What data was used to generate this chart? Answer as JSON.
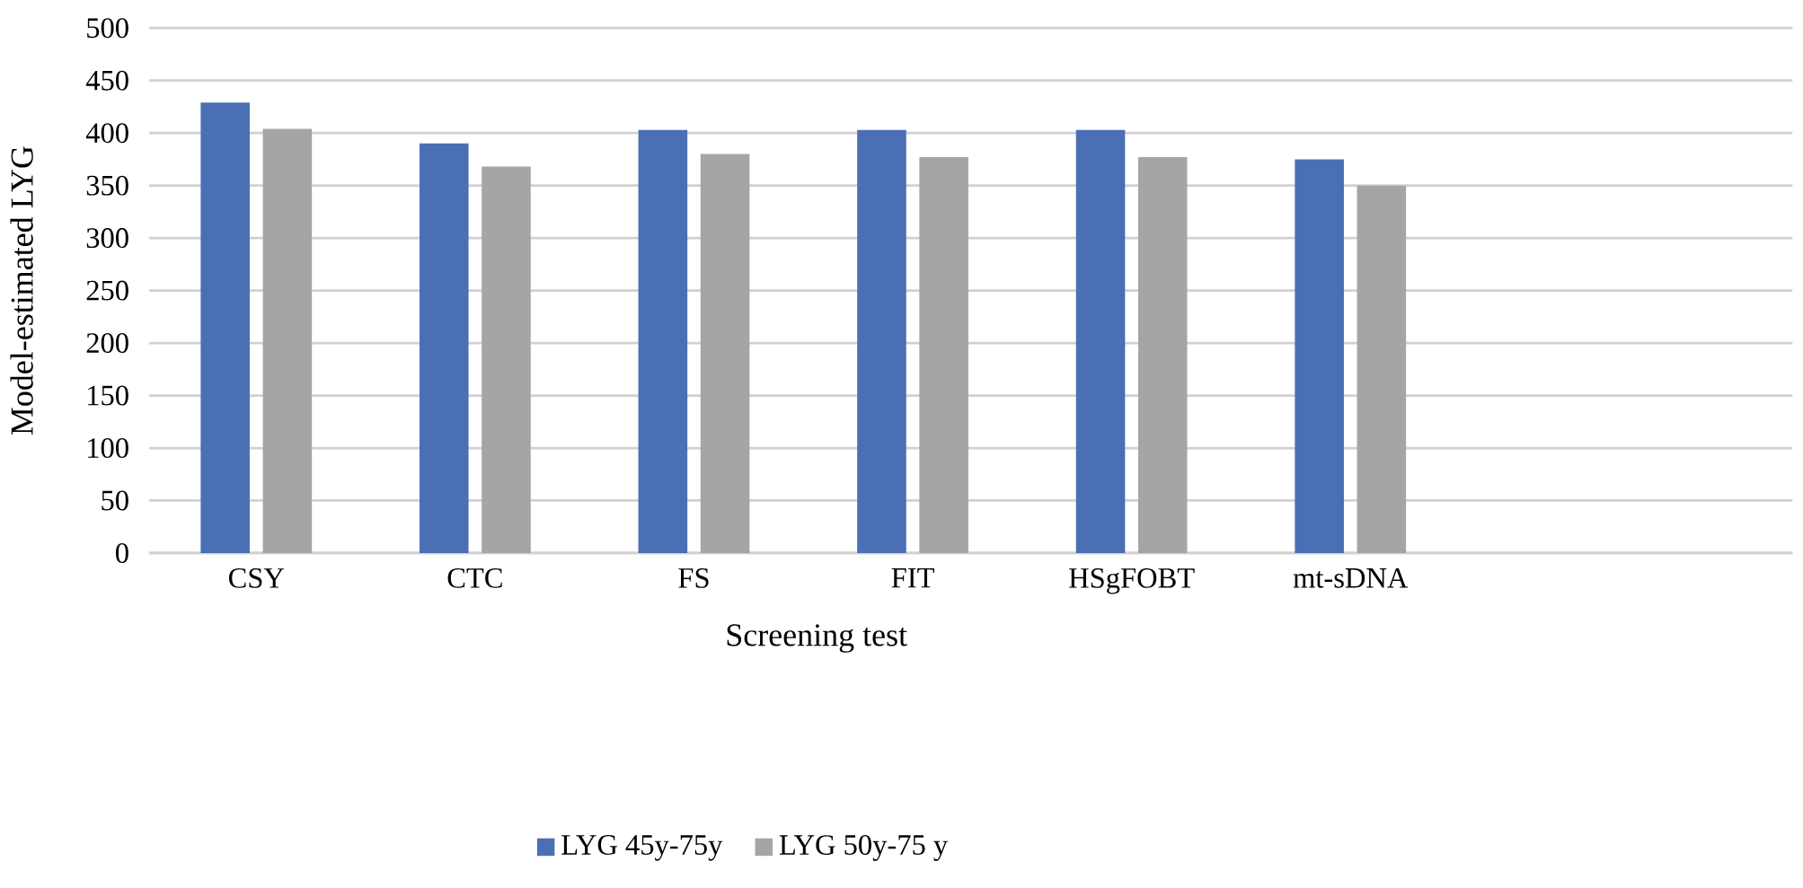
{
  "chart_data": {
    "type": "bar",
    "xlabel": "Screening test",
    "ylabel": "Model-estimated LYG",
    "categories": [
      "CSY",
      "CTC",
      "FS",
      "FIT",
      "HSgFOBT",
      "mt-sDNA"
    ],
    "series": [
      {
        "name": "LYG 45y-75y",
        "color": "#4a6fb5",
        "values": [
          429,
          390,
          403,
          403,
          403,
          375
        ]
      },
      {
        "name": "LYG 50y-75 y",
        "color": "#a5a5a5",
        "values": [
          404,
          368,
          380,
          377,
          377,
          350
        ]
      }
    ],
    "ylim": [
      0,
      500
    ],
    "yticks": [
      0,
      50,
      100,
      150,
      200,
      250,
      300,
      350,
      400,
      450,
      500
    ],
    "grid": "y",
    "legend": "bottom"
  }
}
